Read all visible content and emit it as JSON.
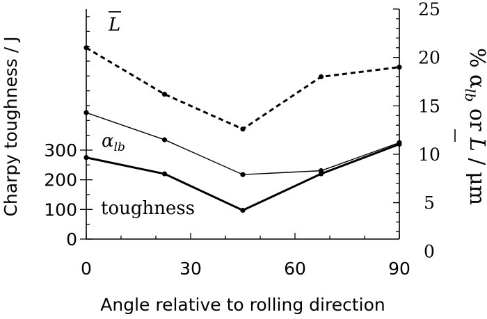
{
  "chart_data": {
    "type": "line",
    "xlabel": "Angle relative to rolling direction",
    "x_ticks": [
      0,
      30,
      60,
      90
    ],
    "xlim": [
      0,
      90
    ],
    "left_axis": {
      "label": "Charpy toughness / J",
      "ticks": [
        0,
        100,
        200,
        300
      ],
      "range": [
        0,
        300
      ]
    },
    "right_axis": {
      "label_prefix": "% α",
      "label_sub": "lb",
      "label_mid": " or ",
      "label_L": "L",
      "label_suffix": " / μm",
      "ticks": [
        0,
        5,
        10,
        15,
        20,
        25
      ],
      "range": [
        -5,
        25
      ]
    },
    "series": [
      {
        "name": "toughness",
        "axis": "left",
        "style": "solid-bold",
        "x": [
          0,
          22.5,
          45,
          67.5,
          90
        ],
        "y": [
          275,
          220,
          97,
          220,
          320
        ]
      },
      {
        "name_main": "α",
        "name_sub": "lb",
        "axis": "right",
        "style": "solid-thin",
        "x": [
          0,
          22.5,
          45,
          67.5,
          90
        ],
        "y": [
          14.3,
          11.5,
          7.9,
          8.3,
          11.2
        ]
      },
      {
        "name": "L",
        "axis": "right",
        "style": "dashed",
        "x": [
          0,
          22.5,
          45,
          67.5,
          90
        ],
        "y": [
          21,
          16.2,
          12.6,
          18,
          19
        ]
      }
    ]
  }
}
